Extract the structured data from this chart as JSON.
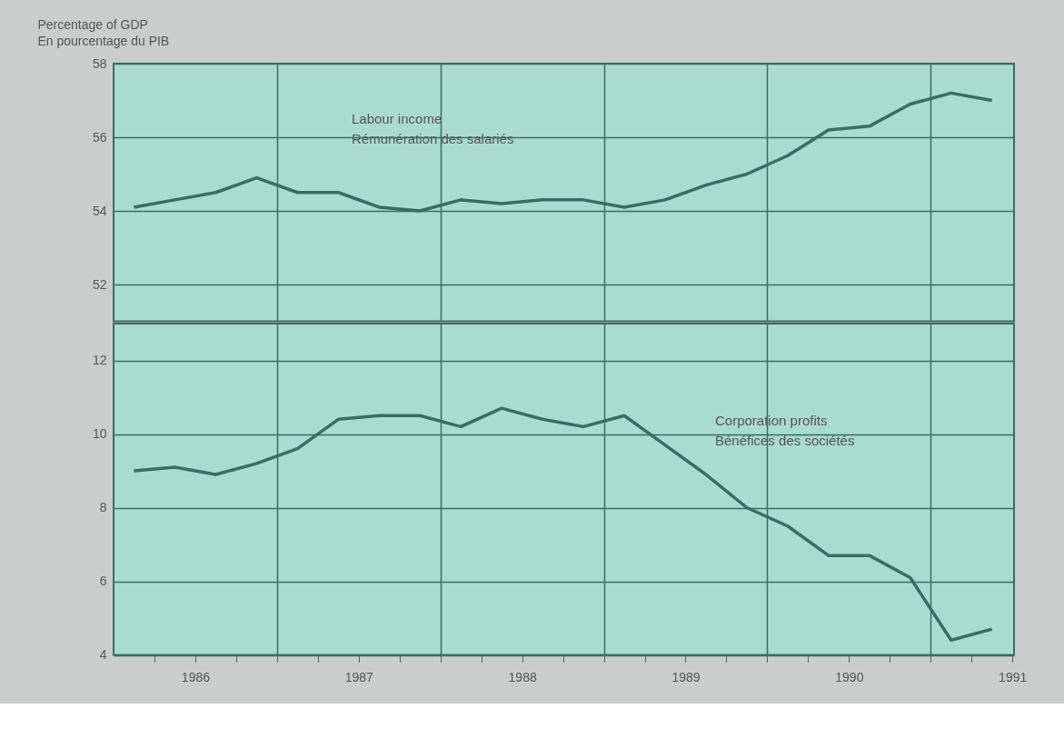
{
  "chart_data": [
    {
      "type": "line",
      "ylabel": "Percentage of GDP\nEn pourcentage du PIB",
      "x": [
        1986.125,
        1986.375,
        1986.625,
        1986.875,
        1987.125,
        1987.375,
        1987.625,
        1987.875,
        1988.125,
        1988.375,
        1988.625,
        1988.875,
        1989.125,
        1989.375,
        1989.625,
        1989.875,
        1990.125,
        1990.375,
        1990.625,
        1990.875,
        1991.125,
        1991.375
      ],
      "series": [
        {
          "color": "#3d6b62",
          "values": [
            54.1,
            54.3,
            54.5,
            54.9,
            54.5,
            54.5,
            54.1,
            54.0,
            54.3,
            54.2,
            54.3,
            54.3,
            54.1,
            54.3,
            54.7,
            55.0,
            55.5,
            56.2,
            56.3,
            56.9,
            57.2,
            57.0
          ]
        }
      ],
      "annotations": [
        "Labour income\nRémunération des salariés"
      ],
      "xlim": [
        1986,
        1991.51
      ],
      "ylim": [
        51,
        58
      ],
      "yticks": [
        52,
        54,
        56,
        58
      ],
      "xticks": [
        {
          "value": 1987,
          "label": null
        },
        {
          "value": 1988,
          "label": null
        },
        {
          "value": 1989,
          "label": null
        },
        {
          "value": 1990,
          "label": null
        },
        {
          "value": 1991,
          "label": null
        }
      ],
      "grid": true,
      "tick_labels": "y",
      "line_style": "solid",
      "marker": "none"
    },
    {
      "type": "line",
      "x": [
        1986.125,
        1986.375,
        1986.625,
        1986.875,
        1987.125,
        1987.375,
        1987.625,
        1987.875,
        1988.125,
        1988.375,
        1988.625,
        1988.875,
        1989.125,
        1989.375,
        1989.625,
        1989.875,
        1990.125,
        1990.375,
        1990.625,
        1990.875,
        1991.125,
        1991.375
      ],
      "series": [
        {
          "color": "#3d6b62",
          "values": [
            9.0,
            9.1,
            8.9,
            9.2,
            9.6,
            10.4,
            10.5,
            10.5,
            10.2,
            10.7,
            10.4,
            10.2,
            10.5,
            9.7,
            8.9,
            8.0,
            7.5,
            6.7,
            6.7,
            6.1,
            4.4,
            4.7
          ]
        }
      ],
      "annotations": [
        "Corporation profits\nBénéfices des sociétés"
      ],
      "xlim": [
        1986,
        1991.51
      ],
      "ylim": [
        4,
        13
      ],
      "yticks": [
        4,
        6,
        8,
        10,
        12
      ],
      "xticks": [
        {
          "value": 1986.25,
          "label": null
        },
        {
          "value": 1986.5,
          "label": "1986"
        },
        {
          "value": 1986.75,
          "label": null
        },
        {
          "value": 1987,
          "label": null
        },
        {
          "value": 1987.25,
          "label": null
        },
        {
          "value": 1987.5,
          "label": "1987"
        },
        {
          "value": 1987.75,
          "label": null
        },
        {
          "value": 1988,
          "label": null
        },
        {
          "value": 1988.25,
          "label": null
        },
        {
          "value": 1988.5,
          "label": "1988"
        },
        {
          "value": 1988.75,
          "label": null
        },
        {
          "value": 1989,
          "label": null
        },
        {
          "value": 1989.25,
          "label": null
        },
        {
          "value": 1989.5,
          "label": "1989"
        },
        {
          "value": 1989.75,
          "label": null
        },
        {
          "value": 1990,
          "label": null
        },
        {
          "value": 1990.25,
          "label": null
        },
        {
          "value": 1990.5,
          "label": "1990"
        },
        {
          "value": 1990.75,
          "label": null
        },
        {
          "value": 1991,
          "label": null
        },
        {
          "value": 1991.25,
          "label": null
        },
        {
          "value": 1991.5,
          "label": "1991"
        }
      ],
      "grid": true,
      "line_style": "solid",
      "marker": "none"
    }
  ]
}
